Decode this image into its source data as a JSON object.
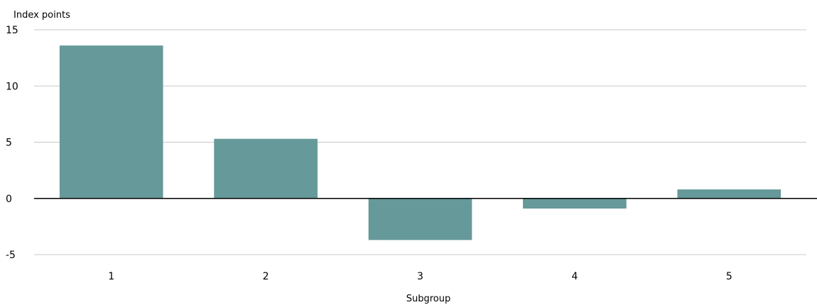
{
  "chart_data": {
    "type": "bar",
    "title": "",
    "ylabel": "Index points",
    "xlabel": "Subgroup",
    "categories": [
      "1",
      "2",
      "3",
      "4",
      "5"
    ],
    "values": [
      13.6,
      5.3,
      -3.7,
      -0.9,
      0.8
    ],
    "ylim": [
      -5,
      15
    ],
    "yticks": [
      15,
      10,
      5,
      0,
      -5
    ],
    "grid": true,
    "bar_color": "#669999",
    "gridline_color": "#c8c8c8",
    "zero_line_color": "#000000"
  }
}
